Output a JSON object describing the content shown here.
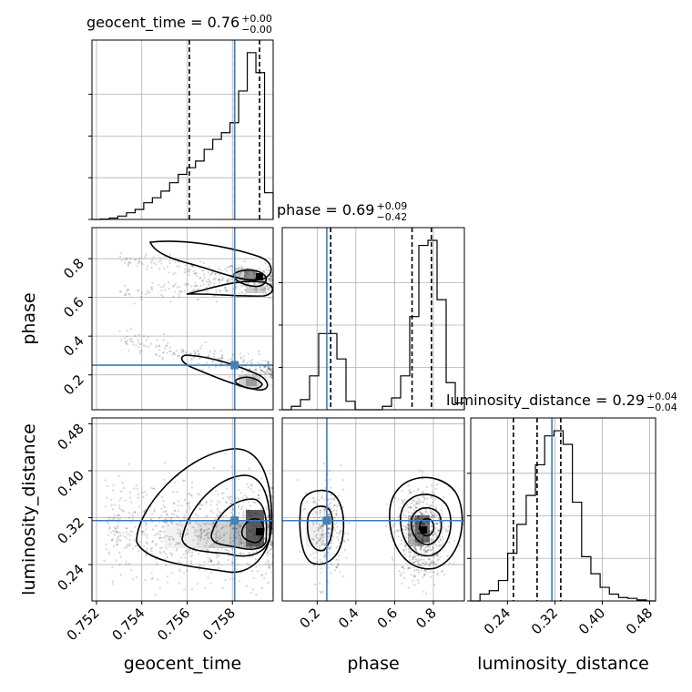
{
  "chart_data": {
    "type": "corner",
    "parameters": [
      {
        "name": "geocent_time",
        "title_main": "geocent_time = 0.76",
        "title_sup": "+0.00",
        "title_sub": "−0.00",
        "axis_label": "geocent_time",
        "range": [
          0.7518,
          0.7598
        ],
        "ticks": [
          0.752,
          0.754,
          0.756,
          0.758
        ],
        "tick_labels": [
          "0.752",
          "0.754",
          "0.756",
          "0.758"
        ],
        "quantiles": [
          0.7561,
          0.7581,
          0.7592
        ],
        "truth": 0.7581,
        "hist_bins": [
          0.0,
          0.002,
          0.008,
          0.02,
          0.04,
          0.06,
          0.1,
          0.13,
          0.17,
          0.22,
          0.27,
          0.31,
          0.35,
          0.42,
          0.48,
          0.52,
          0.58,
          0.77,
          1.0,
          0.88,
          0.16
        ]
      },
      {
        "name": "phase",
        "title_main": "phase = 0.69",
        "title_sup": "+0.09",
        "title_sub": "−0.42",
        "axis_label": "phase",
        "range": [
          0.02,
          0.96
        ],
        "ticks": [
          0.2,
          0.4,
          0.6,
          0.8
        ],
        "tick_labels": [
          "0.2",
          "0.4",
          "0.6",
          "0.8"
        ],
        "quantiles": [
          0.27,
          0.69,
          0.79
        ],
        "truth": 0.25,
        "hist_bins": [
          0.0,
          0.02,
          0.06,
          0.2,
          0.45,
          0.45,
          0.3,
          0.05,
          0.0,
          0.0,
          0.0,
          0.02,
          0.07,
          0.2,
          0.55,
          0.97,
          1.0,
          0.65,
          0.16,
          0.04
        ]
      },
      {
        "name": "luminosity_distance",
        "title_main": "luminosity_distance = 0.29",
        "title_sup": "+0.04",
        "title_sub": "−0.04",
        "axis_label": "luminosity_distance",
        "range": [
          0.178,
          0.49
        ],
        "ticks": [
          0.24,
          0.32,
          0.4,
          0.48
        ],
        "tick_labels": [
          "0.24",
          "0.32",
          "0.40",
          "0.48"
        ],
        "quantiles": [
          0.25,
          0.29,
          0.33
        ],
        "truth": 0.315,
        "hist_bins": [
          0.0,
          0.04,
          0.06,
          0.12,
          0.28,
          0.45,
          0.62,
          0.8,
          0.97,
          1.0,
          0.92,
          0.58,
          0.26,
          0.16,
          0.08,
          0.04,
          0.02,
          0.015,
          0.006,
          0.0
        ]
      }
    ],
    "truths_marker_color": "#4682b4",
    "truth_line_color": "#3a7bbf",
    "quantile_line_style": "dashed",
    "grid": true,
    "scatter_density": {
      "phase_vs_geocent_time": {
        "upper_branch_phase_range": [
          0.55,
          0.9
        ],
        "lower_branch_phase_range": [
          0.13,
          0.4
        ],
        "peak": {
          "x": 0.7594,
          "y": 0.7
        }
      },
      "luminosity_distance_vs_geocent_time": {
        "peak": {
          "x": 0.7594,
          "y": 0.29
        }
      },
      "luminosity_distance_vs_phase": {
        "clusters": [
          {
            "x": 0.25,
            "y": 0.3
          },
          {
            "x": 0.74,
            "y": 0.295
          }
        ]
      }
    }
  }
}
